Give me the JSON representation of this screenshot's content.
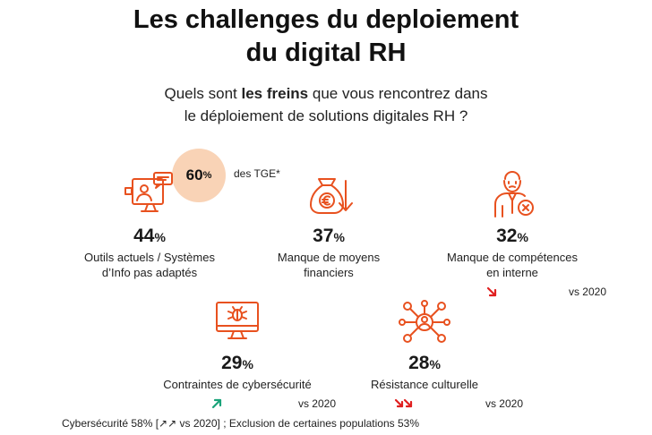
{
  "title_line1": "Les challenges du deploiement",
  "title_line2": "du digital RH",
  "subtitle": {
    "line1_pre": "Quels sont ",
    "line1_bold": "les freins",
    "line1_post": " que vous rencontrez dans",
    "line2": "le déploiement de solutions digitales RH ?"
  },
  "badge": {
    "value": "60",
    "unit": "%",
    "note": "des TGE*"
  },
  "percent_sign": "%",
  "trend_text": "vs 2020",
  "footer": "Cybersécurité 58% [↗↗ vs 2020] ; Exclusion de certaines populations 53%",
  "colors": {
    "accent": "#e8511f",
    "badge": "#f9d3b6",
    "up": "#1aa37a",
    "down": "#e02020"
  },
  "chart_data": {
    "type": "table",
    "items": [
      {
        "value": 44,
        "label_line1": "Outils actuels / Systèmes",
        "label_line2": "d’Info pas adaptés",
        "icon": "computer-user-icon",
        "trend": null
      },
      {
        "value": 37,
        "label_line1": "Manque de moyens",
        "label_line2": "financiers",
        "icon": "money-bag-down-icon",
        "trend": null
      },
      {
        "value": 32,
        "label_line1": "Manque de compétences",
        "label_line2": "en interne",
        "icon": "confused-person-icon",
        "trend": "down"
      },
      {
        "value": 29,
        "label_line1": "Contraintes de cybersécurité",
        "label_line2": "",
        "icon": "monitor-bug-icon",
        "trend": "up"
      },
      {
        "value": 28,
        "label_line1": "Résistance culturelle",
        "label_line2": "",
        "icon": "network-people-icon",
        "trend": "down-double"
      }
    ]
  }
}
